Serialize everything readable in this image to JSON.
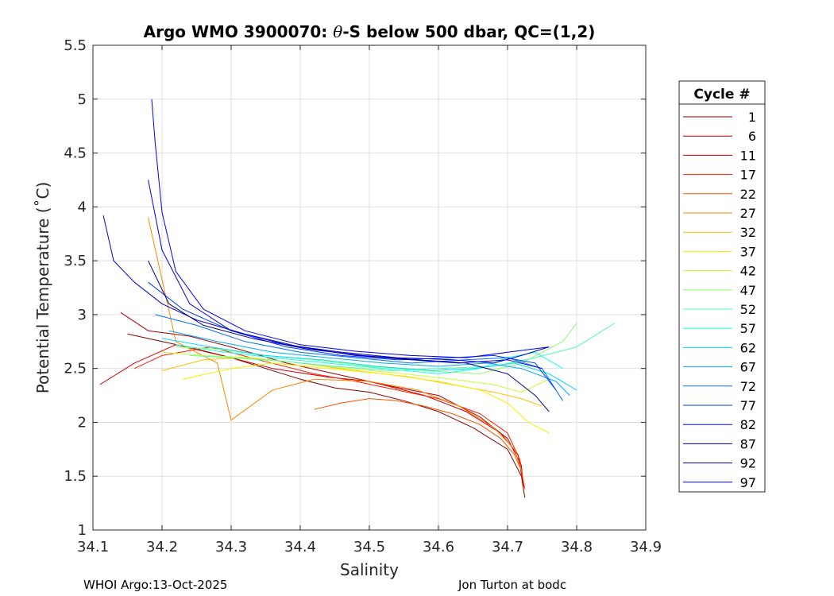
{
  "chart_data": {
    "type": "line",
    "title_prefix": "Argo WMO 3900070: ",
    "title_theta": "θ",
    "title_suffix": "-S below 500 dbar,  QC=(1,2)",
    "xlabel": "Salinity",
    "ylabel": "Potential Temperature (˚C)",
    "xlim": [
      34.1,
      34.9
    ],
    "ylim": [
      1,
      5.5
    ],
    "xticks": [
      34.1,
      34.2,
      34.3,
      34.4,
      34.5,
      34.6,
      34.7,
      34.8,
      34.9
    ],
    "yticks": [
      1,
      1.5,
      2,
      2.5,
      3,
      3.5,
      4,
      4.5,
      5,
      5.5
    ],
    "xtick_labels": [
      "34.1",
      "34.2",
      "34.3",
      "34.4",
      "34.5",
      "34.6",
      "34.7",
      "34.8",
      "34.9"
    ],
    "ytick_labels": [
      "1",
      "1.5",
      "2",
      "2.5",
      "3",
      "3.5",
      "4",
      "4.5",
      "5",
      "5.5"
    ],
    "grid": true,
    "legend": {
      "title": "Cycle #",
      "placement": "right-outside",
      "entries": [
        {
          "label": "1",
          "color": "#800000"
        },
        {
          "label": "6",
          "color": "#a30000"
        },
        {
          "label": "11",
          "color": "#d10000"
        },
        {
          "label": "17",
          "color": "#ff1c00"
        },
        {
          "label": "22",
          "color": "#ff5000"
        },
        {
          "label": "27",
          "color": "#ff8700"
        },
        {
          "label": "32",
          "color": "#ffbe00"
        },
        {
          "label": "37",
          "color": "#f8f000"
        },
        {
          "label": "42",
          "color": "#c8ff30"
        },
        {
          "label": "47",
          "color": "#8aff6c"
        },
        {
          "label": "52",
          "color": "#4dffab"
        },
        {
          "label": "57",
          "color": "#18ffe4"
        },
        {
          "label": "62",
          "color": "#00daff"
        },
        {
          "label": "67",
          "color": "#00a8ff"
        },
        {
          "label": "72",
          "color": "#0070ff"
        },
        {
          "label": "77",
          "color": "#0038ff"
        },
        {
          "label": "82",
          "color": "#0000f2"
        },
        {
          "label": "87",
          "color": "#0000c0"
        },
        {
          "label": "92",
          "color": "#000090"
        },
        {
          "label": "97",
          "color": "#0000d0"
        }
      ]
    },
    "series": [
      {
        "name": "1",
        "x": [
          34.15,
          34.2,
          34.25,
          34.3,
          34.35,
          34.4,
          34.45,
          34.5,
          34.55,
          34.6,
          34.65,
          34.7,
          34.72,
          34.725
        ],
        "y": [
          2.82,
          2.75,
          2.68,
          2.6,
          2.5,
          2.4,
          2.32,
          2.28,
          2.2,
          2.1,
          1.95,
          1.75,
          1.5,
          1.3
        ]
      },
      {
        "name": "6",
        "x": [
          34.14,
          34.18,
          34.24,
          34.3,
          34.38,
          34.45,
          34.52,
          34.6,
          34.66,
          34.7,
          34.72,
          34.723
        ],
        "y": [
          3.02,
          2.85,
          2.8,
          2.7,
          2.55,
          2.45,
          2.35,
          2.25,
          2.05,
          1.85,
          1.6,
          1.4
        ]
      },
      {
        "name": "11",
        "x": [
          34.11,
          34.16,
          34.22,
          34.3,
          34.36,
          34.44,
          34.5,
          34.58,
          34.64,
          34.69,
          34.715,
          34.722
        ],
        "y": [
          2.35,
          2.55,
          2.72,
          2.6,
          2.5,
          2.42,
          2.38,
          2.25,
          2.1,
          1.9,
          1.7,
          1.45
        ]
      },
      {
        "name": "17",
        "x": [
          34.16,
          34.2,
          34.27,
          34.34,
          34.42,
          34.48,
          34.54,
          34.6,
          34.66,
          34.7,
          34.718,
          34.724
        ],
        "y": [
          2.5,
          2.62,
          2.7,
          2.58,
          2.45,
          2.38,
          2.3,
          2.22,
          2.08,
          1.9,
          1.65,
          1.4
        ]
      },
      {
        "name": "22",
        "x": [
          34.42,
          34.46,
          34.5,
          34.54,
          34.58,
          34.62,
          34.66,
          34.69,
          34.71,
          34.72,
          34.725
        ],
        "y": [
          2.12,
          2.18,
          2.22,
          2.2,
          2.15,
          2.08,
          1.98,
          1.85,
          1.7,
          1.55,
          1.38
        ]
      },
      {
        "name": "27",
        "x": [
          34.18,
          34.22,
          34.28,
          34.3,
          34.36,
          34.42,
          34.5,
          34.57,
          34.63,
          34.68,
          34.71,
          34.72
        ],
        "y": [
          3.9,
          2.75,
          2.55,
          2.02,
          2.3,
          2.4,
          2.38,
          2.3,
          2.15,
          1.95,
          1.75,
          1.55
        ]
      },
      {
        "name": "32",
        "x": [
          34.2,
          34.26,
          34.32,
          34.4,
          34.48,
          34.56,
          34.62,
          34.68,
          34.72,
          34.75
        ],
        "y": [
          2.48,
          2.58,
          2.6,
          2.55,
          2.48,
          2.42,
          2.35,
          2.28,
          2.22,
          2.15
        ]
      },
      {
        "name": "37",
        "x": [
          34.23,
          34.3,
          34.36,
          34.44,
          34.52,
          34.6,
          34.66,
          34.7,
          34.73,
          34.76
        ],
        "y": [
          2.4,
          2.5,
          2.55,
          2.5,
          2.45,
          2.38,
          2.3,
          2.18,
          2.0,
          1.9
        ]
      },
      {
        "name": "42",
        "x": [
          34.2,
          34.26,
          34.33,
          34.4,
          34.47,
          34.55,
          34.62,
          34.68,
          34.72,
          34.76
        ],
        "y": [
          2.65,
          2.62,
          2.6,
          2.55,
          2.5,
          2.45,
          2.4,
          2.35,
          2.28,
          2.4
        ]
      },
      {
        "name": "47",
        "x": [
          34.22,
          34.28,
          34.35,
          34.42,
          34.5,
          34.58,
          34.66,
          34.72,
          34.78,
          34.8
        ],
        "y": [
          2.7,
          2.68,
          2.62,
          2.58,
          2.52,
          2.48,
          2.45,
          2.55,
          2.75,
          2.92
        ]
      },
      {
        "name": "52",
        "x": [
          34.24,
          34.3,
          34.37,
          34.45,
          34.53,
          34.6,
          34.68,
          34.74,
          34.8,
          34.855
        ],
        "y": [
          2.62,
          2.6,
          2.57,
          2.52,
          2.48,
          2.5,
          2.52,
          2.6,
          2.7,
          2.92
        ]
      },
      {
        "name": "57",
        "x": [
          34.22,
          34.28,
          34.36,
          34.44,
          34.52,
          34.6,
          34.66,
          34.7,
          34.74,
          34.78
        ],
        "y": [
          2.72,
          2.66,
          2.6,
          2.55,
          2.5,
          2.45,
          2.5,
          2.6,
          2.65,
          2.5
        ]
      },
      {
        "name": "62",
        "x": [
          34.2,
          34.27,
          34.35,
          34.43,
          34.51,
          34.59,
          34.65,
          34.71,
          34.76,
          34.8
        ],
        "y": [
          2.78,
          2.7,
          2.62,
          2.58,
          2.52,
          2.48,
          2.5,
          2.55,
          2.45,
          2.3
        ]
      },
      {
        "name": "67",
        "x": [
          34.21,
          34.28,
          34.36,
          34.44,
          34.52,
          34.6,
          34.67,
          34.72,
          34.77,
          34.79
        ],
        "y": [
          2.85,
          2.75,
          2.65,
          2.6,
          2.55,
          2.52,
          2.55,
          2.5,
          2.38,
          2.25
        ]
      },
      {
        "name": "72",
        "x": [
          34.19,
          34.25,
          34.32,
          34.4,
          34.48,
          34.56,
          34.64,
          34.7,
          34.75,
          34.78
        ],
        "y": [
          3.0,
          2.9,
          2.75,
          2.65,
          2.6,
          2.55,
          2.58,
          2.6,
          2.5,
          2.2
        ]
      },
      {
        "name": "77",
        "x": [
          34.18,
          34.23,
          34.3,
          34.38,
          34.46,
          34.54,
          34.62,
          34.68,
          34.74,
          34.77
        ],
        "y": [
          3.3,
          3.05,
          2.85,
          2.7,
          2.62,
          2.58,
          2.6,
          2.62,
          2.55,
          2.3
        ]
      },
      {
        "name": "82",
        "x": [
          34.185,
          34.19,
          34.2,
          34.22,
          34.26,
          34.32,
          34.4,
          34.48,
          34.56,
          34.64,
          34.7,
          34.76
        ],
        "y": [
          5.0,
          4.6,
          3.95,
          3.4,
          3.05,
          2.85,
          2.72,
          2.66,
          2.62,
          2.6,
          2.65,
          2.7
        ]
      },
      {
        "name": "87",
        "x": [
          34.115,
          34.13,
          34.16,
          34.2,
          34.25,
          34.32,
          34.4,
          34.48,
          34.56,
          34.63,
          34.7,
          34.75
        ],
        "y": [
          3.92,
          3.5,
          3.3,
          3.1,
          2.95,
          2.82,
          2.7,
          2.62,
          2.58,
          2.55,
          2.58,
          2.5
        ]
      },
      {
        "name": "92",
        "x": [
          34.18,
          34.21,
          34.26,
          34.33,
          34.41,
          34.49,
          34.57,
          34.64,
          34.7,
          34.74,
          34.76
        ],
        "y": [
          3.5,
          3.1,
          2.9,
          2.78,
          2.68,
          2.62,
          2.58,
          2.55,
          2.45,
          2.25,
          2.1
        ]
      },
      {
        "name": "97",
        "x": [
          34.18,
          34.2,
          34.24,
          34.3,
          34.38,
          34.46,
          34.54,
          34.62,
          34.68,
          34.72,
          34.76
        ],
        "y": [
          4.25,
          3.6,
          3.1,
          2.85,
          2.72,
          2.65,
          2.6,
          2.58,
          2.55,
          2.62,
          2.7
        ]
      }
    ]
  },
  "footer": {
    "left": "WHOI Argo:13-Oct-2025",
    "right": "Jon Turton at bodc"
  }
}
